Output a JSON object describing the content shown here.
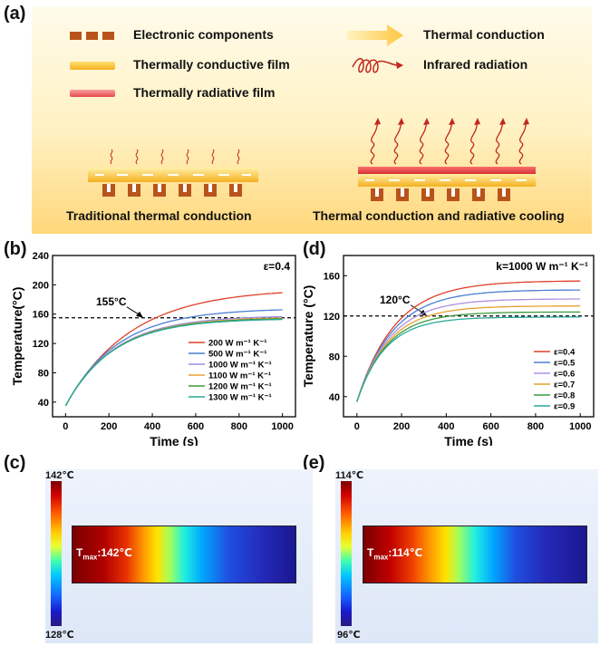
{
  "panel_labels": {
    "a": "(a)",
    "b": "(b)",
    "c": "(c)",
    "d": "(d)",
    "e": "(e)"
  },
  "schematic": {
    "legend": {
      "electronic": "Electronic components",
      "conductive_film": "Thermally conductive film",
      "radiative_film": "Thermally radiative film",
      "thermal_conduction": "Thermal conduction",
      "infrared": "Infrared radiation"
    },
    "caption_left": "Traditional thermal conduction",
    "caption_right": "Thermal conduction and radiative cooling",
    "colors": {
      "component": "#b8541a",
      "film": "#ffc640",
      "radiative": "#e84a4a",
      "arrow": "#c0281e"
    }
  },
  "chart_data": [
    {
      "id": "b",
      "type": "line",
      "xlabel": "Time (s)",
      "ylabel": "Temperature(°C)",
      "xlim": [
        -60,
        1060
      ],
      "ylim": [
        20,
        240
      ],
      "xticks": [
        0,
        200,
        400,
        600,
        800,
        1000
      ],
      "yticks": [
        40,
        80,
        120,
        160,
        200,
        240
      ],
      "annotation": "ε=0.4",
      "threshold": {
        "value": 155,
        "label": "155°C"
      },
      "series": [
        {
          "name": "200 W m⁻¹ K⁻¹",
          "color": "#e0402a",
          "T0": 35,
          "Tinf": 195,
          "tau": 300
        },
        {
          "name": "500 W m⁻¹ K⁻¹",
          "color": "#4a7fd0",
          "T0": 35,
          "Tinf": 168,
          "tau": 240
        },
        {
          "name": "1000 W m⁻¹ K⁻¹",
          "color": "#9a8fe0",
          "T0": 35,
          "Tinf": 158,
          "tau": 225
        },
        {
          "name": "1100 W m⁻¹ K⁻¹",
          "color": "#e8a030",
          "T0": 35,
          "Tinf": 156,
          "tau": 222
        },
        {
          "name": "1200 W m⁻¹ K⁻¹",
          "color": "#3c9a3c",
          "T0": 35,
          "Tinf": 155,
          "tau": 220
        },
        {
          "name": "1300 W m⁻¹ K⁻¹",
          "color": "#2aa89a",
          "T0": 35,
          "Tinf": 154,
          "tau": 218
        }
      ]
    },
    {
      "id": "d",
      "type": "line",
      "xlabel": "Time (s)",
      "ylabel": "Temperature (°C)",
      "xlim": [
        -60,
        1060
      ],
      "ylim": [
        20,
        180
      ],
      "xticks": [
        0,
        200,
        400,
        600,
        800,
        1000
      ],
      "yticks": [
        40,
        80,
        120,
        160
      ],
      "annotation": "k=1000 W m⁻¹ K⁻¹",
      "threshold": {
        "value": 120,
        "label": "120°C"
      },
      "series": [
        {
          "name": "ε=0.4",
          "color": "#e0402a",
          "T0": 35,
          "Tinf": 155,
          "tau": 170
        },
        {
          "name": "ε=0.5",
          "color": "#4a7fd0",
          "T0": 35,
          "Tinf": 146,
          "tau": 160
        },
        {
          "name": "ε=0.6",
          "color": "#b08fe0",
          "T0": 35,
          "Tinf": 137,
          "tau": 150
        },
        {
          "name": "ε=0.7",
          "color": "#e8a030",
          "T0": 35,
          "Tinf": 130,
          "tau": 142
        },
        {
          "name": "ε=0.8",
          "color": "#3c9a3c",
          "T0": 35,
          "Tinf": 124,
          "tau": 135
        },
        {
          "name": "ε=0.9",
          "color": "#2aa89a",
          "T0": 35,
          "Tinf": 119,
          "tau": 128
        }
      ]
    }
  ],
  "thermal_maps": {
    "c": {
      "max_label": "142℃",
      "min_label": "128℃",
      "tmax_prefix": "T",
      "tmax_sub": "max",
      "tmax_value": ":142℃"
    },
    "e": {
      "max_label": "114℃",
      "min_label": "96℃",
      "tmax_prefix": "T",
      "tmax_sub": "max",
      "tmax_value": ":114℃"
    }
  }
}
